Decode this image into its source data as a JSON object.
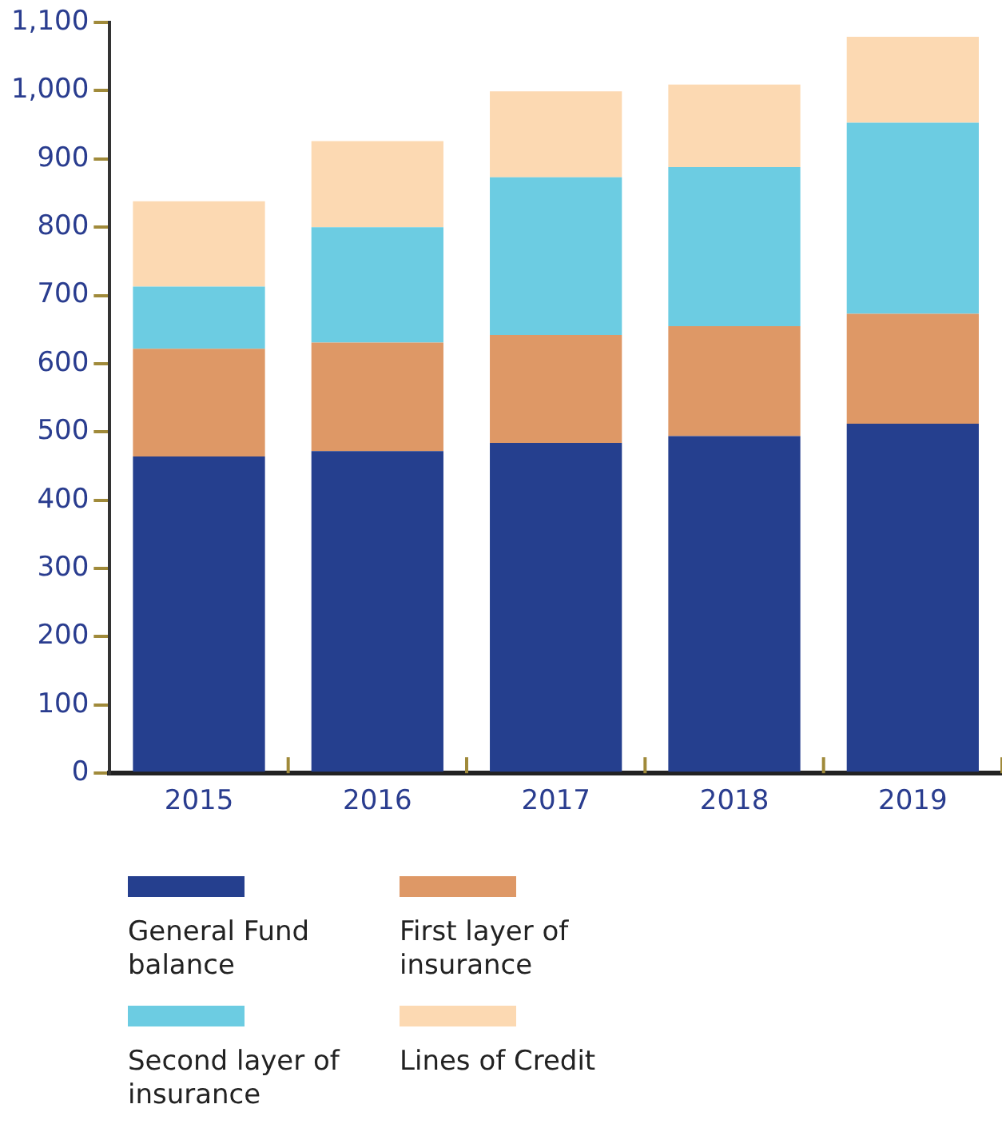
{
  "chart_data": {
    "type": "bar",
    "stacked": true,
    "categories": [
      "2015",
      "2016",
      "2017",
      "2018",
      "2019"
    ],
    "series": [
      {
        "name": "General Fund balance",
        "color": "#253f8e",
        "values": [
          464,
          472,
          484,
          494,
          512
        ]
      },
      {
        "name": "First layer of insurance",
        "color": "#de9866",
        "values": [
          158,
          159,
          158,
          161,
          161
        ]
      },
      {
        "name": "Second layer of insurance",
        "color": "#6ccce2",
        "values": [
          91,
          169,
          231,
          233,
          280
        ]
      },
      {
        "name": "Lines of Credit",
        "color": "#fcd9b2",
        "values": [
          125,
          126,
          126,
          121,
          126
        ]
      }
    ],
    "ylim": [
      0,
      1100
    ],
    "yticks": [
      0,
      100,
      200,
      300,
      400,
      500,
      600,
      700,
      800,
      900,
      {
        "value": 1000,
        "label": "1,000"
      },
      {
        "value": 1100,
        "label": "1,100"
      }
    ],
    "grid": false,
    "legend": "bottom"
  }
}
